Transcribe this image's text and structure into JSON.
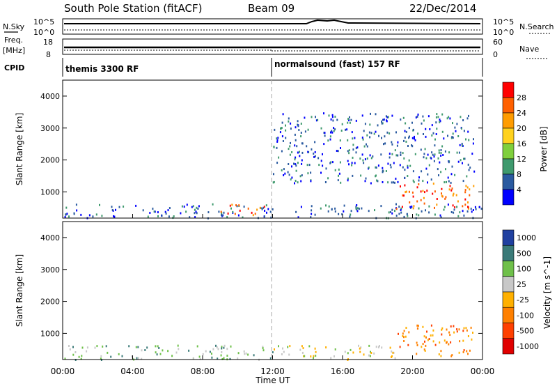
{
  "header": {
    "station": "South Pole Station (fitACF)",
    "beam": "Beam 09",
    "date": "22/Dec/2014"
  },
  "nsky_panel": {
    "left_label": "N.Sky",
    "left_ticks": [
      "10^5",
      "10^0"
    ],
    "right_ticks": [
      "10^5",
      "10^0"
    ],
    "right_label": "N.Search"
  },
  "freq_panel": {
    "left_label_line1": "Freq.",
    "left_label_line2": "[MHz]",
    "left_ticks": [
      "18",
      "8"
    ],
    "right_ticks": [
      "60",
      "0"
    ],
    "right_label": "Nave"
  },
  "cpid_panel": {
    "label": "CPID",
    "mode1": "themis 3300 RF",
    "mode2": "normalsound (fast) 157 RF"
  },
  "chart_data": [
    {
      "type": "heatmap",
      "name": "power",
      "title": "",
      "xlabel": "Time UT",
      "ylabel": "Slant Range [km]",
      "xlim": [
        0,
        24
      ],
      "ylim": [
        180,
        4500
      ],
      "x_ticks": [
        "00:00",
        "04:00",
        "08:00",
        "12:00",
        "16:00",
        "20:00",
        "00:00"
      ],
      "y_ticks": [
        "1000",
        "2000",
        "3000",
        "4000"
      ],
      "y_tick_values": [
        1000,
        2000,
        3000,
        4000
      ],
      "colorbar": {
        "label": "Power [dB]",
        "tick_labels": [
          "28",
          "24",
          "20",
          "16",
          "12",
          "8",
          "4"
        ],
        "colors": [
          "#ff0000",
          "#ff6000",
          "#ff9c00",
          "#ffd21e",
          "#7fcf3c",
          "#3f9a6e",
          "#2a5aa0",
          "#0000ff"
        ]
      },
      "features": [
        {
          "t0": 0.0,
          "t1": 24.0,
          "r0": 200,
          "r1": 650,
          "level": 6
        },
        {
          "t0": 9.0,
          "t1": 11.5,
          "r0": 300,
          "r1": 650,
          "level": 1
        },
        {
          "t0": 19.0,
          "t1": 23.5,
          "r0": 500,
          "r1": 1300,
          "level": 1
        },
        {
          "t0": 12.0,
          "t1": 23.5,
          "r0": 1300,
          "r1": 3500,
          "level": 6
        }
      ]
    },
    {
      "type": "heatmap",
      "name": "velocity",
      "title": "",
      "xlabel": "Time UT",
      "ylabel": "Slant Range [km]",
      "xlim": [
        0,
        24
      ],
      "ylim": [
        180,
        4500
      ],
      "x_ticks": [
        "00:00",
        "04:00",
        "08:00",
        "12:00",
        "16:00",
        "20:00",
        "00:00"
      ],
      "y_ticks": [
        "1000",
        "2000",
        "3000",
        "4000"
      ],
      "y_tick_values": [
        1000,
        2000,
        3000,
        4000
      ],
      "colorbar": {
        "label": "Velocity [m s^-1]",
        "tick_labels": [
          "1000",
          "500",
          "100",
          "25",
          "-25",
          "-100",
          "-500",
          "-1000"
        ],
        "colors": [
          "#2040a0",
          "#3a7a78",
          "#6fc04a",
          "#c8c8c8",
          "#ffb000",
          "#ff8000",
          "#ff4000",
          "#e00000"
        ]
      },
      "features": [
        {
          "t0": 0.0,
          "t1": 12.0,
          "r0": 200,
          "r1": 650,
          "level": 2
        },
        {
          "t0": 12.0,
          "t1": 19.0,
          "r0": 200,
          "r1": 650,
          "level": 3
        },
        {
          "t0": 19.0,
          "t1": 23.5,
          "r0": 300,
          "r1": 1300,
          "level": 5
        }
      ]
    }
  ]
}
